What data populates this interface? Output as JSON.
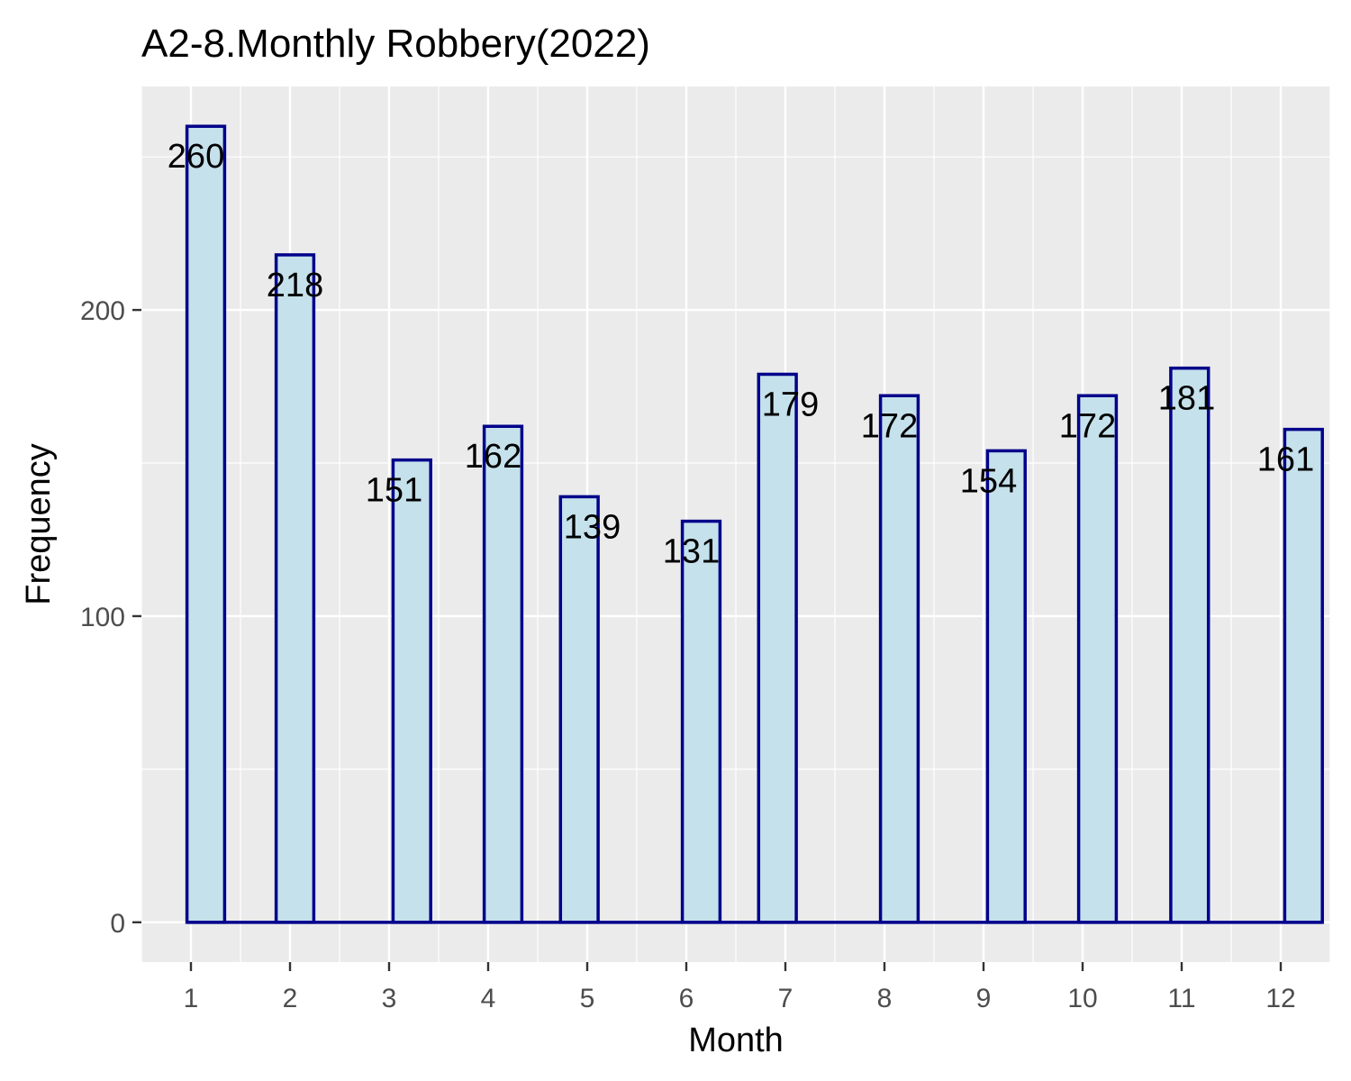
{
  "chart_data": {
    "type": "bar",
    "title": "A2-8.Monthly Robbery(2022)",
    "xlabel": "Month",
    "ylabel": "Frequency",
    "x": [
      1,
      2,
      3,
      4,
      5,
      6,
      7,
      8,
      9,
      10,
      11,
      12
    ],
    "values": [
      260,
      218,
      151,
      162,
      139,
      131,
      179,
      172,
      154,
      172,
      181,
      161
    ],
    "data_labels": [
      "260",
      "218",
      "151",
      "162",
      "139",
      "131",
      "179",
      "172",
      "154",
      "172",
      "181",
      "161"
    ],
    "x_ticks": [
      "1",
      "2",
      "3",
      "4",
      "5",
      "6",
      "7",
      "8",
      "9",
      "10",
      "11",
      "12"
    ],
    "y_ticks": [
      0,
      100,
      200
    ],
    "y_tick_labels": [
      "0",
      "100",
      "200"
    ],
    "xlim": [
      0.5,
      12.5
    ],
    "ylim": [
      -13,
      273
    ],
    "grid": true,
    "colors": {
      "panel_background": "#ebebeb",
      "grid": "#ffffff",
      "bar_fill": "#c5e1eb",
      "bar_outline": "#00008b"
    }
  }
}
